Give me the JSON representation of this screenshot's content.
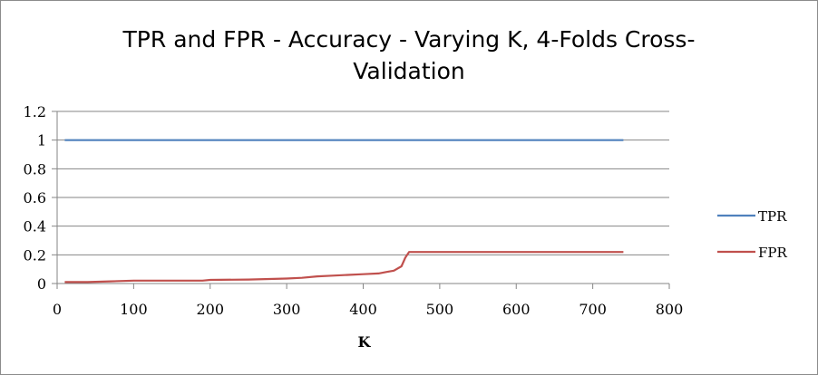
{
  "chart_data": {
    "type": "line",
    "title": "TPR and FPR - Accuracy - Varying K, 4-Folds Cross-Validation",
    "title_lines": [
      "TPR and FPR - Accuracy - Varying K, 4-Folds Cross-",
      "Validation"
    ],
    "xlabel": "K",
    "ylabel": "",
    "xlim": [
      0,
      800
    ],
    "ylim": [
      0,
      1.2
    ],
    "x_ticks": [
      "0",
      "100",
      "200",
      "300",
      "400",
      "500",
      "600",
      "700",
      "800"
    ],
    "y_ticks": [
      "0",
      "0.2",
      "0.4",
      "0.6",
      "0.8",
      "1",
      "1.2"
    ],
    "grid": "horizontal",
    "legend_position": "right",
    "series": [
      {
        "name": "TPR",
        "color": "#4f81bd",
        "points": [
          [
            10,
            1.0
          ],
          [
            740,
            1.0
          ]
        ]
      },
      {
        "name": "FPR",
        "color": "#c0504d",
        "points": [
          [
            10,
            0.01
          ],
          [
            40,
            0.01
          ],
          [
            70,
            0.015
          ],
          [
            100,
            0.02
          ],
          [
            150,
            0.02
          ],
          [
            190,
            0.02
          ],
          [
            200,
            0.025
          ],
          [
            250,
            0.028
          ],
          [
            300,
            0.035
          ],
          [
            320,
            0.04
          ],
          [
            340,
            0.05
          ],
          [
            360,
            0.055
          ],
          [
            380,
            0.06
          ],
          [
            400,
            0.065
          ],
          [
            420,
            0.07
          ],
          [
            430,
            0.08
          ],
          [
            440,
            0.09
          ],
          [
            450,
            0.12
          ],
          [
            455,
            0.18
          ],
          [
            460,
            0.22
          ],
          [
            470,
            0.22
          ],
          [
            500,
            0.22
          ],
          [
            600,
            0.22
          ],
          [
            700,
            0.22
          ],
          [
            740,
            0.22
          ]
        ]
      }
    ]
  }
}
